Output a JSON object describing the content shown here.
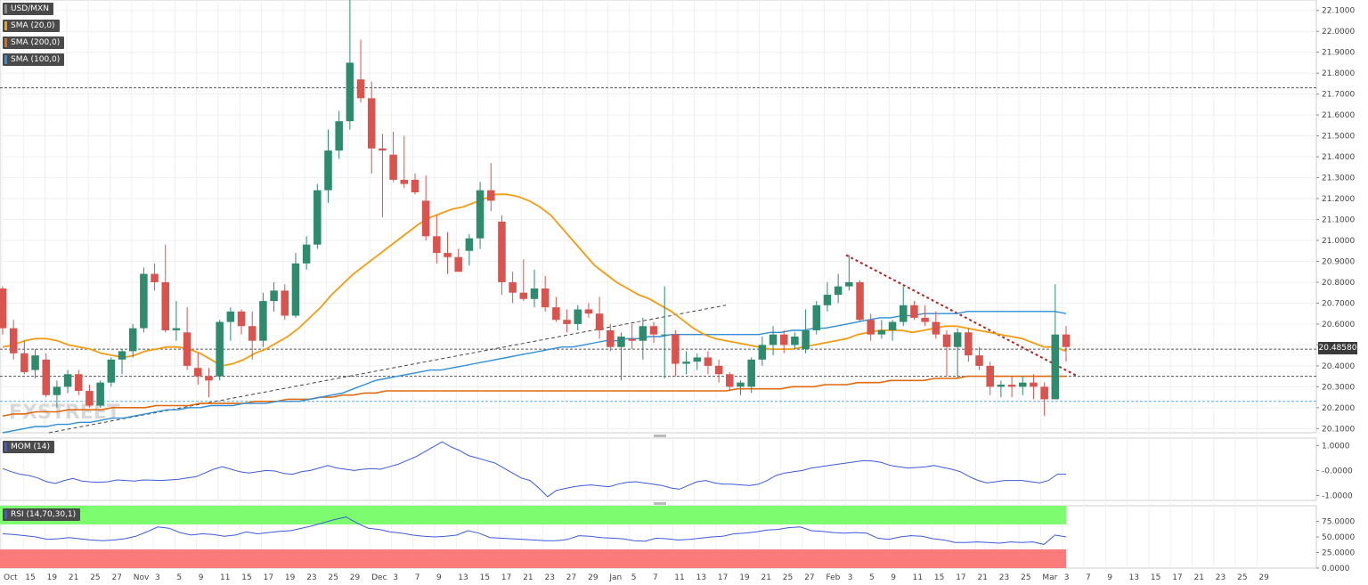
{
  "legends": {
    "symbol": "USD/MXN",
    "sma20": "SMA (20,0)",
    "sma200": "SMA (200,0)",
    "sma100": "SMA (100,0)",
    "mom": "MOM (14)",
    "rsi": "RSI (14,70,30,1)"
  },
  "colors": {
    "up": "#2e8b6e",
    "down": "#d9534f",
    "sma20": "#f39c12",
    "sma200": "#e06a10",
    "sma100": "#2f8fd8",
    "mom": "#3b5bdb",
    "rsi": "#3b5bdb",
    "rsi_over": "#7cfc6e",
    "rsi_under": "#fb7b7b"
  },
  "price_tag": "20.48580",
  "watermark": "FXSTREET",
  "chart_data": {
    "type": "candlestick",
    "ylim": [
      20.08,
      22.15
    ],
    "yticks": [
      "22.1000",
      "22.0000",
      "21.9000",
      "21.8000",
      "21.7000",
      "21.6000",
      "21.5000",
      "21.4000",
      "21.3000",
      "21.2000",
      "21.1000",
      "21.0000",
      "20.9000",
      "20.8000",
      "20.7000",
      "20.6000",
      "20.5000",
      "20.4000",
      "20.3000",
      "20.2000",
      "20.1000"
    ],
    "xticks": [
      "Oct",
      "15",
      "19",
      "21",
      "25",
      "27",
      "Nov",
      "3",
      "5",
      "9",
      "11",
      "15",
      "17",
      "19",
      "23",
      "25",
      "29",
      "Dec",
      "3",
      "7",
      "9",
      "13",
      "15",
      "17",
      "21",
      "23",
      "27",
      "29",
      "Jan",
      "5",
      "7",
      "11",
      "13",
      "17",
      "19",
      "21",
      "25",
      "27",
      "Feb",
      "3",
      "5",
      "9",
      "11",
      "15",
      "17",
      "21",
      "23",
      "25",
      "Mar",
      "3",
      "7",
      "9",
      "13",
      "15",
      "17",
      "21",
      "23",
      "25",
      "29"
    ],
    "candles": [
      [
        20.77,
        20.78,
        20.55,
        20.58
      ],
      [
        20.58,
        20.62,
        20.43,
        20.46
      ],
      [
        20.46,
        20.52,
        20.36,
        20.37
      ],
      [
        20.38,
        20.48,
        20.34,
        20.45
      ],
      [
        20.43,
        20.46,
        20.25,
        20.26
      ],
      [
        20.26,
        20.33,
        20.2,
        20.3
      ],
      [
        20.3,
        20.38,
        20.27,
        20.36
      ],
      [
        20.36,
        20.38,
        20.26,
        20.28
      ],
      [
        20.28,
        20.31,
        20.2,
        20.21
      ],
      [
        20.21,
        20.33,
        20.2,
        20.32
      ],
      [
        20.32,
        20.44,
        20.3,
        20.43
      ],
      [
        20.43,
        20.48,
        20.36,
        20.47
      ],
      [
        20.47,
        20.6,
        20.44,
        20.58
      ],
      [
        20.58,
        20.87,
        20.56,
        20.84
      ],
      [
        20.84,
        20.89,
        20.76,
        20.8
      ],
      [
        20.8,
        20.98,
        20.56,
        20.57
      ],
      [
        20.57,
        20.71,
        20.52,
        20.58
      ],
      [
        20.56,
        20.68,
        20.38,
        20.4
      ],
      [
        20.39,
        20.46,
        20.31,
        20.35
      ],
      [
        20.35,
        20.39,
        20.25,
        20.33
      ],
      [
        20.35,
        20.62,
        20.33,
        20.61
      ],
      [
        20.61,
        20.68,
        20.52,
        20.66
      ],
      [
        20.66,
        20.67,
        20.55,
        20.59
      ],
      [
        20.59,
        20.66,
        20.43,
        20.52
      ],
      [
        20.52,
        20.75,
        20.49,
        20.71
      ],
      [
        20.71,
        20.8,
        20.66,
        20.76
      ],
      [
        20.76,
        20.79,
        20.62,
        20.64
      ],
      [
        20.64,
        20.94,
        20.63,
        20.89
      ],
      [
        20.89,
        21.02,
        20.86,
        20.98
      ],
      [
        20.98,
        21.27,
        20.96,
        21.24
      ],
      [
        21.24,
        21.53,
        21.18,
        21.43
      ],
      [
        21.43,
        21.62,
        21.39,
        21.57
      ],
      [
        21.57,
        22.15,
        21.53,
        21.85
      ],
      [
        21.77,
        21.96,
        21.66,
        21.68
      ],
      [
        21.68,
        21.76,
        21.32,
        21.44
      ],
      [
        21.44,
        21.51,
        21.11,
        21.43
      ],
      [
        21.41,
        21.52,
        21.28,
        21.29
      ],
      [
        21.29,
        21.5,
        21.25,
        21.27
      ],
      [
        21.29,
        21.32,
        21.22,
        21.23
      ],
      [
        21.19,
        21.31,
        21.0,
        21.02
      ],
      [
        21.02,
        21.12,
        20.89,
        20.94
      ],
      [
        20.94,
        21.04,
        20.84,
        20.92
      ],
      [
        20.92,
        20.96,
        20.86,
        20.85
      ],
      [
        20.95,
        21.03,
        20.88,
        21.01
      ],
      [
        21.01,
        21.28,
        20.96,
        21.24
      ],
      [
        21.24,
        21.37,
        21.14,
        21.19
      ],
      [
        21.09,
        21.12,
        20.74,
        20.8
      ],
      [
        20.8,
        20.85,
        20.7,
        20.75
      ],
      [
        20.75,
        20.91,
        20.71,
        20.72
      ],
      [
        20.72,
        20.86,
        20.68,
        20.77
      ],
      [
        20.77,
        20.83,
        20.66,
        20.68
      ],
      [
        20.68,
        20.73,
        20.61,
        20.62
      ],
      [
        20.62,
        20.67,
        20.56,
        20.6
      ],
      [
        20.6,
        20.69,
        20.57,
        20.67
      ],
      [
        20.67,
        20.7,
        20.63,
        20.65
      ],
      [
        20.65,
        20.73,
        20.53,
        20.57
      ],
      [
        20.57,
        20.6,
        20.47,
        20.49
      ],
      [
        20.49,
        20.56,
        20.33,
        20.54
      ],
      [
        20.53,
        20.6,
        20.48,
        20.52
      ],
      [
        20.52,
        20.63,
        20.43,
        20.59
      ],
      [
        20.59,
        20.61,
        20.51,
        20.55
      ],
      [
        20.55,
        20.78,
        20.34,
        20.55
      ],
      [
        20.55,
        20.57,
        20.35,
        20.41
      ],
      [
        20.41,
        20.47,
        20.36,
        20.42
      ],
      [
        20.42,
        20.46,
        20.38,
        20.44
      ],
      [
        20.44,
        20.47,
        20.36,
        20.4
      ],
      [
        20.4,
        20.43,
        20.32,
        20.36
      ],
      [
        20.36,
        20.37,
        20.28,
        20.3
      ],
      [
        20.3,
        20.33,
        20.26,
        20.32
      ],
      [
        20.3,
        20.44,
        20.27,
        20.43
      ],
      [
        20.43,
        20.54,
        20.4,
        20.5
      ],
      [
        20.5,
        20.59,
        20.45,
        20.55
      ],
      [
        20.55,
        20.57,
        20.46,
        20.5
      ],
      [
        20.5,
        20.56,
        20.48,
        20.54
      ],
      [
        20.48,
        20.67,
        20.46,
        20.57
      ],
      [
        20.57,
        20.71,
        20.55,
        20.69
      ],
      [
        20.69,
        20.8,
        20.66,
        20.74
      ],
      [
        20.74,
        20.84,
        20.7,
        20.78
      ],
      [
        20.78,
        20.93,
        20.76,
        20.8
      ],
      [
        20.8,
        20.81,
        20.61,
        20.62
      ],
      [
        20.62,
        20.65,
        20.52,
        20.55
      ],
      [
        20.55,
        20.62,
        20.53,
        20.57
      ],
      [
        20.57,
        20.62,
        20.52,
        20.61
      ],
      [
        20.61,
        20.78,
        20.59,
        20.69
      ],
      [
        20.69,
        20.71,
        20.62,
        20.63
      ],
      [
        20.63,
        20.69,
        20.59,
        20.61
      ],
      [
        20.61,
        20.66,
        20.53,
        20.55
      ],
      [
        20.55,
        20.57,
        20.35,
        20.49
      ],
      [
        20.49,
        20.58,
        20.34,
        20.56
      ],
      [
        20.56,
        20.58,
        20.42,
        20.45
      ],
      [
        20.45,
        20.49,
        20.38,
        20.4
      ],
      [
        20.4,
        20.42,
        20.26,
        20.3
      ],
      [
        20.3,
        20.33,
        20.25,
        20.31
      ],
      [
        20.31,
        20.35,
        20.25,
        20.3
      ],
      [
        20.3,
        20.35,
        20.26,
        20.32
      ],
      [
        20.32,
        20.36,
        20.24,
        20.3
      ],
      [
        20.3,
        20.32,
        20.16,
        20.24
      ],
      [
        20.24,
        20.79,
        20.24,
        20.55
      ],
      [
        20.55,
        20.59,
        20.42,
        20.49
      ]
    ],
    "sma20": [
      20.49,
      20.5,
      20.52,
      20.53,
      20.53,
      20.52,
      20.5,
      20.49,
      20.48,
      20.46,
      20.45,
      20.44,
      20.45,
      20.47,
      20.48,
      20.49,
      20.49,
      20.48,
      20.46,
      20.43,
      20.4,
      20.41,
      20.43,
      20.46,
      20.48,
      20.51,
      20.54,
      20.58,
      20.63,
      20.68,
      20.74,
      20.79,
      20.84,
      20.88,
      20.92,
      20.96,
      21.0,
      21.04,
      21.08,
      21.11,
      21.13,
      21.15,
      21.16,
      21.18,
      21.2,
      21.22,
      21.22,
      21.21,
      21.19,
      21.16,
      21.12,
      21.06,
      21.0,
      20.94,
      20.88,
      20.84,
      20.8,
      20.77,
      20.74,
      20.72,
      20.69,
      20.66,
      20.62,
      20.58,
      20.55,
      20.53,
      20.52,
      20.51,
      20.5,
      20.49,
      20.48,
      20.48,
      20.48,
      20.49,
      20.5,
      20.51,
      20.52,
      20.53,
      20.55,
      20.56,
      20.57,
      20.57,
      20.57,
      20.56,
      20.57,
      20.58,
      20.59,
      20.59,
      20.58,
      20.57,
      20.56,
      20.55,
      20.54,
      20.53,
      20.51,
      20.49,
      20.49,
      20.47
    ],
    "sma100": [
      20.08,
      20.09,
      20.1,
      20.11,
      20.11,
      20.12,
      20.12,
      20.13,
      20.13,
      20.14,
      20.15,
      20.15,
      20.16,
      20.17,
      20.18,
      20.19,
      20.19,
      20.2,
      20.2,
      20.21,
      20.21,
      20.21,
      20.22,
      20.22,
      20.22,
      20.23,
      20.23,
      20.23,
      20.24,
      20.25,
      20.26,
      20.27,
      20.29,
      20.31,
      20.33,
      20.34,
      20.35,
      20.36,
      20.37,
      20.38,
      20.38,
      20.39,
      20.4,
      20.41,
      20.42,
      20.43,
      20.44,
      20.45,
      20.46,
      20.47,
      20.48,
      20.49,
      20.49,
      20.5,
      20.51,
      20.52,
      20.52,
      20.53,
      20.53,
      20.54,
      20.54,
      20.55,
      20.55,
      20.55,
      20.55,
      20.55,
      20.55,
      20.55,
      20.55,
      20.55,
      20.56,
      20.56,
      20.57,
      20.57,
      20.58,
      20.58,
      20.59,
      20.6,
      20.61,
      20.62,
      20.63,
      20.63,
      20.64,
      20.64,
      20.65,
      20.65,
      20.65,
      20.65,
      20.66,
      20.66,
      20.66,
      20.66,
      20.66,
      20.66,
      20.66,
      20.66,
      20.66,
      20.65
    ],
    "sma200": [
      20.16,
      20.17,
      20.17,
      20.18,
      20.18,
      20.18,
      20.19,
      20.19,
      20.19,
      20.19,
      20.2,
      20.2,
      20.2,
      20.2,
      20.21,
      20.21,
      20.21,
      20.21,
      20.22,
      20.22,
      20.22,
      20.22,
      20.22,
      20.23,
      20.23,
      20.23,
      20.24,
      20.24,
      20.24,
      20.25,
      20.25,
      20.26,
      20.26,
      20.27,
      20.27,
      20.28,
      20.28,
      20.28,
      20.28,
      20.28,
      20.28,
      20.28,
      20.28,
      20.28,
      20.28,
      20.28,
      20.28,
      20.28,
      20.28,
      20.28,
      20.28,
      20.28,
      20.28,
      20.28,
      20.28,
      20.28,
      20.28,
      20.28,
      20.28,
      20.28,
      20.28,
      20.28,
      20.28,
      20.28,
      20.28,
      20.28,
      20.28,
      20.29,
      20.29,
      20.29,
      20.29,
      20.29,
      20.3,
      20.3,
      20.3,
      20.31,
      20.31,
      20.31,
      20.32,
      20.32,
      20.32,
      20.33,
      20.33,
      20.33,
      20.33,
      20.34,
      20.34,
      20.34,
      20.35,
      20.35,
      20.35,
      20.35,
      20.35,
      20.35,
      20.35,
      20.35,
      20.35,
      20.35
    ],
    "mom": {
      "ylim": [
        -1.2,
        1.3
      ],
      "yticks": [
        "1.0000",
        "-0.0000",
        "-1.0000"
      ],
      "values": [
        0.08,
        -0.05,
        -0.15,
        -0.2,
        -0.3,
        -0.45,
        -0.52,
        -0.4,
        -0.32,
        -0.42,
        -0.46,
        -0.47,
        -0.45,
        -0.38,
        -0.4,
        -0.42,
        -0.38,
        -0.39,
        -0.4,
        -0.38,
        -0.35,
        -0.3,
        -0.25,
        -0.1,
        0.05,
        0.15,
        0.05,
        -0.05,
        -0.1,
        -0.05,
        0.0,
        -0.02,
        -0.12,
        -0.15,
        -0.05,
        0.0,
        0.1,
        0.2,
        0.1,
        0.05,
        0.0,
        0.05,
        0.08,
        0.05,
        0.15,
        0.25,
        0.4,
        0.55,
        0.75,
        0.95,
        1.15,
        0.95,
        0.8,
        0.6,
        0.5,
        0.4,
        0.3,
        0.1,
        -0.1,
        -0.3,
        -0.4,
        -0.7,
        -1.05,
        -0.8,
        -0.72,
        -0.65,
        -0.6,
        -0.58,
        -0.62,
        -0.65,
        -0.55,
        -0.48,
        -0.45,
        -0.5,
        -0.55,
        -0.6,
        -0.7,
        -0.75,
        -0.6,
        -0.45,
        -0.4,
        -0.5,
        -0.55,
        -0.55,
        -0.58,
        -0.6,
        -0.55,
        -0.4,
        -0.2,
        -0.1,
        -0.05,
        0.0,
        0.1,
        0.15,
        0.2,
        0.25,
        0.3,
        0.35,
        0.4,
        0.38,
        0.32,
        0.2,
        0.15,
        0.1,
        0.12,
        0.15,
        0.2,
        0.12,
        0.05,
        -0.05,
        -0.25,
        -0.4,
        -0.5,
        -0.45,
        -0.4,
        -0.4,
        -0.4,
        -0.45,
        -0.5,
        -0.4,
        -0.15,
        -0.15
      ],
      "xtickLabels": []
    },
    "rsi": {
      "ylim": [
        0,
        100
      ],
      "yticks": [
        "75.0000",
        "50.0000",
        "25.0000",
        "0.0000"
      ],
      "overbought": 70,
      "oversold": 30,
      "values": [
        55,
        54,
        52,
        50,
        46,
        47,
        49,
        47,
        45,
        44,
        45,
        47,
        51,
        58,
        66,
        64,
        57,
        53,
        55,
        54,
        51,
        53,
        58,
        55,
        57,
        59,
        60,
        64,
        68,
        73,
        78,
        82,
        72,
        64,
        62,
        58,
        56,
        53,
        51,
        50,
        51,
        53,
        60,
        56,
        49,
        48,
        47,
        46,
        45,
        44,
        44,
        46,
        52,
        51,
        49,
        48,
        47,
        44,
        43,
        48,
        47,
        45,
        46,
        48,
        50,
        51,
        55,
        56,
        58,
        61,
        62,
        65,
        66,
        60,
        59,
        57,
        56,
        57,
        56,
        48,
        46,
        50,
        52,
        51,
        47,
        45,
        41,
        41,
        42,
        41,
        40,
        42,
        41,
        42,
        38,
        53,
        50
      ]
    }
  }
}
